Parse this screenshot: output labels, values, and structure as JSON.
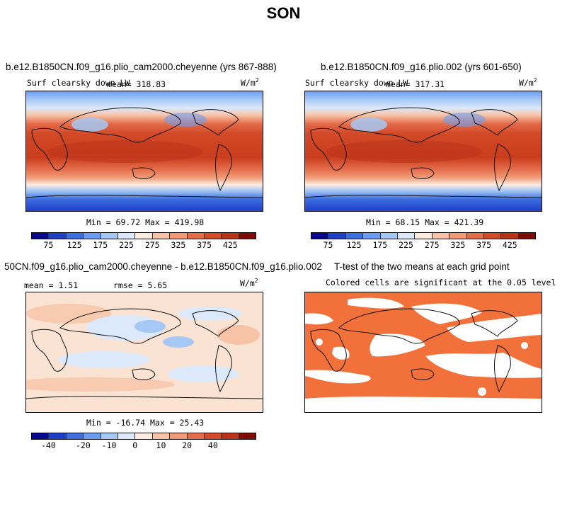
{
  "title": "SON",
  "panels": [
    {
      "title": "b.e12.B1850CN.f09_g16.plio_cam2000.cheyenne (yrs 867-888)",
      "variable": "Surf clearsky down LW",
      "mean_text": "mean= 318.83",
      "units": "W/m",
      "units_exp": "2",
      "minmax": "Min =  69.72 Max = 419.98"
    },
    {
      "title": "b.e12.B1850CN.f09_g16.plio.002 (yrs 601-650)",
      "variable": "Surf clearsky down LW",
      "mean_text": "mean= 317.31",
      "units": "W/m",
      "units_exp": "2",
      "minmax": "Min =  68.15 Max = 421.39"
    },
    {
      "title": "50CN.f09_g16.plio_cam2000.cheyenne - b.e12.B1850CN.f09_g16.plio.002",
      "mean_text": "mean =   1.51",
      "rmse_text": "rmse =   5.65",
      "units": "W/m",
      "units_exp": "2",
      "minmax": "Min = -16.74 Max =  25.43"
    },
    {
      "title": "T-test of the two means at each grid point",
      "subtitle": "Colored cells are significant at the 0.05 level"
    }
  ],
  "colorbar_abs": {
    "colors": [
      "#08088c",
      "#1f3fc8",
      "#3c6ee0",
      "#6c9cf0",
      "#a6c8f5",
      "#dbe9fb",
      "#fdebe0",
      "#f7c3a6",
      "#f19a76",
      "#e46c4a",
      "#d24a28",
      "#b83118",
      "#7f0b06"
    ],
    "ticks": [
      "75",
      "125",
      "175",
      "225",
      "275",
      "325",
      "375",
      "425"
    ]
  },
  "colorbar_diff": {
    "colors": [
      "#08088c",
      "#1f3fc8",
      "#3c6ee0",
      "#6c9cf0",
      "#a6c8f5",
      "#dbe9fb",
      "#fdebe0",
      "#f7c3a6",
      "#f19a76",
      "#e46c4a",
      "#d24a28",
      "#b83118",
      "#7f0b06"
    ],
    "ticks": [
      "-40",
      "-20",
      "-10",
      "0",
      "10",
      "20",
      "40"
    ]
  },
  "significance_color": "#f2703a"
}
